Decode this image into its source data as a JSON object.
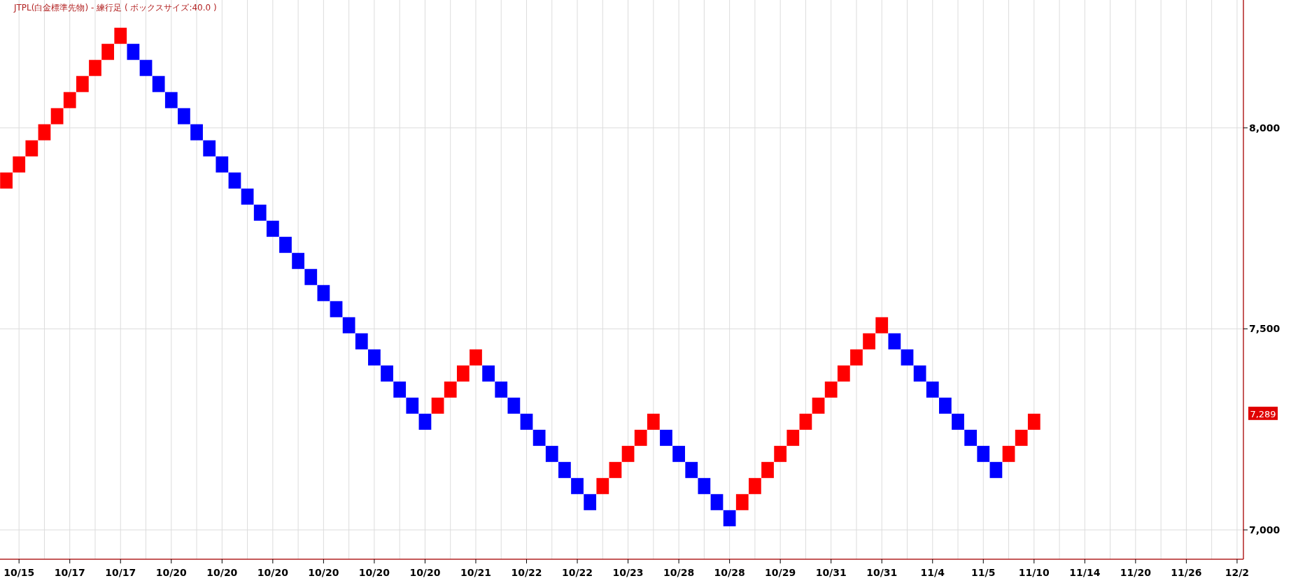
{
  "chart_data": {
    "type": "bar",
    "title": "JTPL(白金標準先物) - 練行足 ( ボックスサイズ:40.0 )",
    "categories": [
      null,
      "10/15",
      null,
      null,
      null,
      "10/17",
      null,
      null,
      null,
      "10/17",
      null,
      null,
      null,
      "10/20",
      null,
      null,
      null,
      "10/20",
      null,
      null,
      null,
      "10/20",
      null,
      null,
      null,
      "10/20",
      null,
      null,
      null,
      "10/20",
      null,
      null,
      null,
      "10/20",
      null,
      null,
      null,
      "10/21",
      null,
      null,
      null,
      "10/22",
      null,
      null,
      null,
      "10/22",
      null,
      null,
      null,
      "10/23",
      null,
      null,
      null,
      "10/28",
      null,
      null,
      null,
      "10/28",
      null,
      null,
      null,
      "10/29",
      null,
      null,
      null,
      "10/31",
      null,
      null,
      null,
      "10/31",
      null,
      null,
      null,
      "11/4",
      null,
      null,
      null,
      "11/5",
      null,
      null,
      null,
      "11/10",
      null,
      null,
      null,
      "11/14",
      null,
      null,
      null,
      "11/20",
      null,
      null,
      null,
      "11/26",
      null,
      null,
      null,
      "12/2"
    ],
    "base": [
      7849,
      7889,
      7929,
      7969,
      8009,
      8049,
      8089,
      8129,
      8169,
      8209,
      8209,
      8169,
      8129,
      8089,
      8049,
      8009,
      7969,
      7929,
      7889,
      7849,
      7809,
      7769,
      7729,
      7689,
      7649,
      7609,
      7569,
      7529,
      7489,
      7449,
      7409,
      7369,
      7329,
      7289,
      7289,
      7329,
      7369,
      7409,
      7409,
      7369,
      7329,
      7289,
      7249,
      7209,
      7169,
      7129,
      7089,
      7089,
      7129,
      7169,
      7209,
      7249,
      7249,
      7209,
      7169,
      7129,
      7089,
      7049,
      7049,
      7089,
      7129,
      7169,
      7209,
      7249,
      7289,
      7329,
      7369,
      7409,
      7449,
      7489,
      7489,
      7449,
      7409,
      7369,
      7329,
      7289,
      7249,
      7209,
      7169,
      7169,
      7209,
      7249,
      null,
      null,
      null,
      null,
      null,
      null,
      null,
      null,
      null,
      null,
      null,
      null,
      null,
      null,
      null,
      null
    ],
    "values": [
      40,
      40,
      40,
      40,
      40,
      40,
      40,
      40,
      40,
      40,
      -40,
      -40,
      -40,
      -40,
      -40,
      -40,
      -40,
      -40,
      -40,
      -40,
      -40,
      -40,
      -40,
      -40,
      -40,
      -40,
      -40,
      -40,
      -40,
      -40,
      -40,
      -40,
      -40,
      -40,
      40,
      40,
      40,
      40,
      -40,
      -40,
      -40,
      -40,
      -40,
      -40,
      -40,
      -40,
      -40,
      40,
      40,
      40,
      40,
      40,
      -40,
      -40,
      -40,
      -40,
      -40,
      -40,
      40,
      40,
      40,
      40,
      40,
      40,
      40,
      40,
      40,
      40,
      40,
      40,
      -40,
      -40,
      -40,
      -40,
      -40,
      -40,
      -40,
      -40,
      -40,
      40,
      40,
      40,
      null,
      null,
      null,
      null,
      null,
      null,
      null,
      null,
      null,
      null,
      null,
      null,
      null,
      null,
      null,
      null
    ],
    "colors": [
      "#ff0000",
      "#ff0000",
      "#ff0000",
      "#ff0000",
      "#ff0000",
      "#ff0000",
      "#ff0000",
      "#ff0000",
      "#ff0000",
      "#ff0000",
      "#0000ff",
      "#0000ff",
      "#0000ff",
      "#0000ff",
      "#0000ff",
      "#0000ff",
      "#0000ff",
      "#0000ff",
      "#0000ff",
      "#0000ff",
      "#0000ff",
      "#0000ff",
      "#0000ff",
      "#0000ff",
      "#0000ff",
      "#0000ff",
      "#0000ff",
      "#0000ff",
      "#0000ff",
      "#0000ff",
      "#0000ff",
      "#0000ff",
      "#0000ff",
      "#0000ff",
      "#ff0000",
      "#ff0000",
      "#ff0000",
      "#ff0000",
      "#0000ff",
      "#0000ff",
      "#0000ff",
      "#0000ff",
      "#0000ff",
      "#0000ff",
      "#0000ff",
      "#0000ff",
      "#0000ff",
      "#ff0000",
      "#ff0000",
      "#ff0000",
      "#ff0000",
      "#ff0000",
      "#0000ff",
      "#0000ff",
      "#0000ff",
      "#0000ff",
      "#0000ff",
      "#0000ff",
      "#ff0000",
      "#ff0000",
      "#ff0000",
      "#ff0000",
      "#ff0000",
      "#ff0000",
      "#ff0000",
      "#ff0000",
      "#ff0000",
      "#ff0000",
      "#ff0000",
      "#ff0000",
      "#0000ff",
      "#0000ff",
      "#0000ff",
      "#0000ff",
      "#0000ff",
      "#0000ff",
      "#0000ff",
      "#0000ff",
      "#0000ff",
      "#ff0000",
      "#ff0000",
      "#ff0000",
      null,
      null,
      null,
      null,
      null,
      null,
      null,
      null,
      null,
      null,
      null,
      null,
      null,
      null,
      null,
      null
    ],
    "ylim": [
      6927,
      8318
    ],
    "yticks": [
      {
        "value": 7000,
        "label": "7,000"
      },
      {
        "value": 7500,
        "label": "7,500"
      },
      {
        "value": 8000,
        "label": "8,000"
      }
    ],
    "annotations": [
      "7,289"
    ],
    "grid": true
  }
}
